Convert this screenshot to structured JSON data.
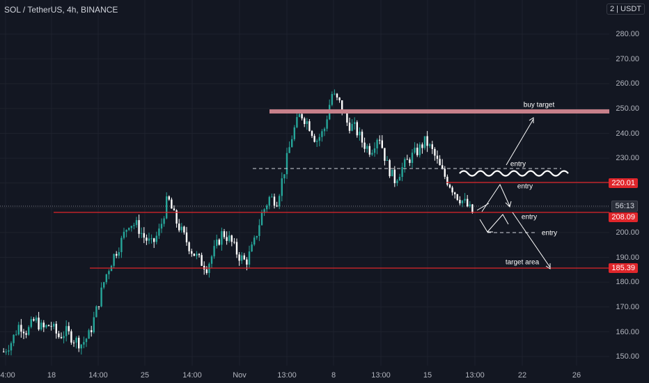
{
  "header": {
    "title": "SOL / TetherUS, 4h, BINANCE",
    "currency_prefix": "2",
    "currency": "USDT"
  },
  "price_axis": {
    "labels": [
      "280.00",
      "270.00",
      "260.00",
      "250.00",
      "240.00",
      "230.00",
      "200.00",
      "190.00",
      "180.00",
      "170.00",
      "160.00",
      "150.00"
    ]
  },
  "time_axis": {
    "labels": [
      "14:00",
      "18",
      "14:00",
      "25",
      "14:00",
      "Nov",
      "13:00",
      "8",
      "13:00",
      "15",
      "13:00",
      "22",
      "26"
    ]
  },
  "price_badges": {
    "level_upper": "220.01",
    "countdown": "56:13",
    "level_mid": "208.09",
    "level_lower": "185.39"
  },
  "annotations": {
    "buy_target": "buy target",
    "entry_top": "entry",
    "entry_mid": "entry",
    "entry_right": "entry",
    "entry_bottom": "entry",
    "target_area": "target area"
  },
  "colors": {
    "background": "#131722",
    "up_candle": "#26a69a",
    "down_candle": "#ffffff",
    "level_line": "#e0262b",
    "target_zone": "#c7808a"
  },
  "chart_data": {
    "type": "candlestick",
    "symbol": "SOL / TetherUS",
    "interval": "4h",
    "exchange": "BINANCE",
    "ylim": [
      146,
      285
    ],
    "close_series_approx": [
      152,
      156,
      163,
      160,
      165,
      161,
      163,
      158,
      160,
      157,
      155,
      159,
      170,
      182,
      190,
      196,
      204,
      203,
      198,
      195,
      201,
      214,
      205,
      199,
      193,
      189,
      186,
      193,
      200,
      197,
      191,
      188,
      195,
      207,
      214,
      213,
      226,
      240,
      248,
      244,
      237,
      241,
      256,
      252,
      244,
      242,
      236,
      233,
      240,
      228,
      221,
      226,
      230,
      233,
      237,
      232,
      225,
      220,
      215,
      212,
      208
    ],
    "levels": [
      {
        "label": "buy target",
        "value": 249
      },
      {
        "value": 220.01
      },
      {
        "value": 208.09
      },
      {
        "value": 185.39
      },
      {
        "label": "entry",
        "value": 226
      }
    ]
  }
}
